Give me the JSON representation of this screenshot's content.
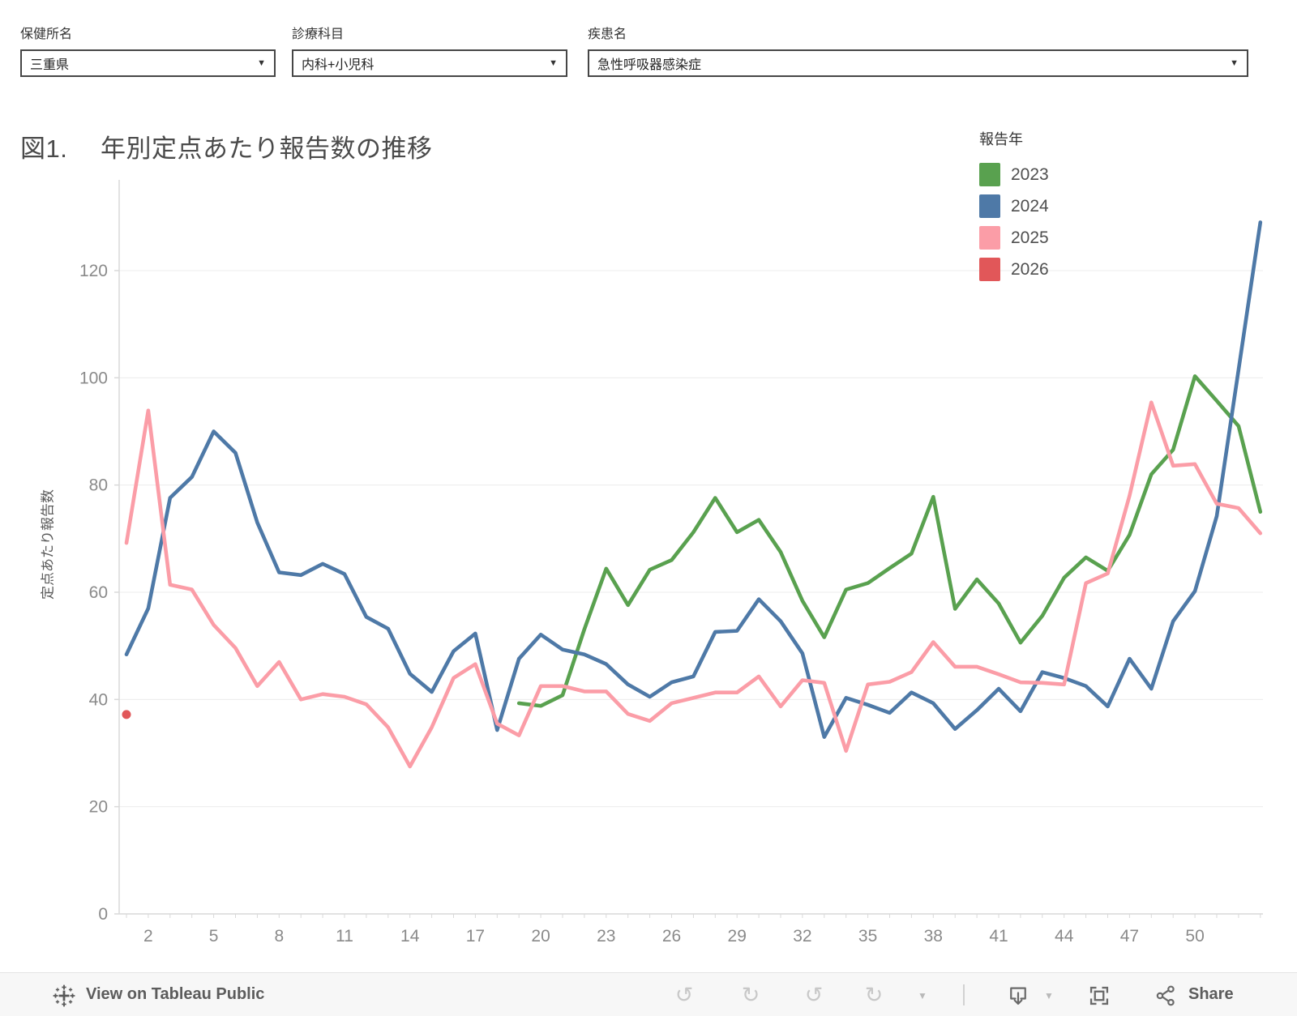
{
  "filters": [
    {
      "label": "保健所名",
      "value": "三重県"
    },
    {
      "label": "診療科目",
      "value": "内科+小児科"
    },
    {
      "label": "疾患名",
      "value": "急性呼吸器感染症"
    }
  ],
  "chart_data": {
    "type": "line",
    "title": "図1.　 年別定点あたり報告数の推移",
    "xlabel": "",
    "ylabel": "定点あたり報告数",
    "legend_title": "報告年",
    "legend_position": "top-right",
    "grid": "horizontal",
    "x_range": [
      1,
      53
    ],
    "ylim": [
      0,
      137
    ],
    "y_ticks": [
      0,
      20,
      40,
      60,
      80,
      100,
      120
    ],
    "x_tick_labels": [
      2,
      5,
      8,
      11,
      14,
      17,
      20,
      23,
      26,
      29,
      32,
      35,
      38,
      41,
      44,
      47,
      50
    ],
    "series": [
      {
        "name": "2023",
        "color": "#59A14F",
        "style": "line",
        "start_week": 19,
        "values": [
          39.3,
          38.8,
          40.8,
          53.1,
          64.4,
          57.6,
          64.2,
          66,
          71.2,
          77.6,
          71.2,
          73.5,
          67.5,
          58.4,
          51.6,
          60.5,
          61.7,
          64.5,
          67.2,
          77.8,
          56.9,
          62.4,
          57.9,
          50.6,
          55.6,
          62.7,
          66.5,
          64,
          70.7,
          82,
          86.6,
          100.3,
          95.7,
          91,
          75
        ]
      },
      {
        "name": "2024",
        "color": "#4E79A7",
        "style": "line",
        "start_week": 1,
        "values": [
          48.4,
          57,
          77.6,
          81.5,
          90,
          86,
          73,
          63.7,
          63.2,
          65.3,
          63.4,
          55.4,
          53.2,
          44.8,
          41.4,
          49,
          52.3,
          34.3,
          47.6,
          52.1,
          49.3,
          48.4,
          46.6,
          42.8,
          40.5,
          43.2,
          44.3,
          52.6,
          52.8,
          58.7,
          54.6,
          48.6,
          33,
          40.3,
          39,
          37.5,
          41.3,
          39.3,
          34.5,
          38,
          42,
          37.8,
          45.1,
          44,
          42.5,
          38.7,
          47.6,
          42,
          54.6,
          60.2,
          74.2,
          101.5,
          129
        ]
      },
      {
        "name": "2025",
        "color": "#FB9DA7",
        "style": "line",
        "start_week": 1,
        "values": [
          69.2,
          93.9,
          61.4,
          60.5,
          53.9,
          49.6,
          42.5,
          47,
          40,
          41,
          40.5,
          39.1,
          34.8,
          27.5,
          34.8,
          44,
          46.6,
          35.5,
          33.3,
          42.5,
          42.5,
          41.5,
          41.5,
          37.3,
          36,
          39.3,
          40.3,
          41.3,
          41.3,
          44.3,
          38.7,
          43.6,
          43.1,
          30.4,
          42.8,
          43.3,
          45.1,
          50.7,
          46.1,
          46.1,
          44.7,
          43.2,
          43.1,
          42.8,
          61.7,
          63.5,
          78,
          95.4,
          83.6,
          83.9,
          76.5,
          75.7,
          71
        ]
      },
      {
        "name": "2026",
        "color": "#E15759",
        "style": "point",
        "start_week": 1,
        "values": [
          37.2
        ]
      }
    ]
  },
  "legend": {
    "title": "報告年",
    "items": [
      {
        "label": "2023",
        "color": "#59A14F"
      },
      {
        "label": "2024",
        "color": "#4E79A7"
      },
      {
        "label": "2025",
        "color": "#FB9DA7"
      },
      {
        "label": "2026",
        "color": "#E15759"
      }
    ]
  },
  "axis_colors": {
    "grid": "#ececec",
    "axis": "#d9d9d9",
    "tick_label": "#8a8a8a"
  },
  "toolbar": {
    "view_on_label": "View on Tableau Public",
    "share_label": "Share",
    "icons": [
      "tableau-logo-icon",
      "undo-icon",
      "redo-icon",
      "reset-icon",
      "refresh-icon",
      "download-icon",
      "fullscreen-icon",
      "share-icon"
    ]
  }
}
